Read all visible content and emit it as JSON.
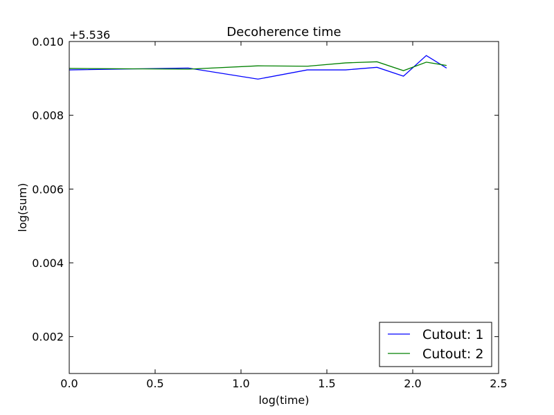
{
  "chart_data": {
    "type": "line",
    "title": "Decoherence time",
    "xlabel": "log(time)",
    "ylabel": "log(sum)",
    "offset_label": "+5.536",
    "xlim": [
      0.0,
      2.5
    ],
    "ylim": [
      0.001,
      0.01
    ],
    "x_ticks": [
      "0.0",
      "0.5",
      "1.0",
      "1.5",
      "2.0",
      "2.5"
    ],
    "y_ticks": [
      "0.002",
      "0.004",
      "0.006",
      "0.008",
      "0.010"
    ],
    "grid": false,
    "legend_position": "lower-right",
    "series": [
      {
        "name": "Cutout: 1",
        "color": "#0000ff",
        "x": [
          0.0,
          0.693,
          1.099,
          1.386,
          1.609,
          1.792,
          1.946,
          2.079,
          2.197
        ],
        "y": [
          0.00923,
          0.00928,
          0.00898,
          0.00923,
          0.00923,
          0.0093,
          0.00906,
          0.00962,
          0.00928
        ]
      },
      {
        "name": "Cutout: 2",
        "color": "#008000",
        "x": [
          0.0,
          0.693,
          1.099,
          1.386,
          1.609,
          1.792,
          1.946,
          2.079,
          2.197
        ],
        "y": [
          0.00927,
          0.00925,
          0.00934,
          0.00933,
          0.00942,
          0.00945,
          0.00921,
          0.00944,
          0.00935
        ]
      }
    ]
  }
}
